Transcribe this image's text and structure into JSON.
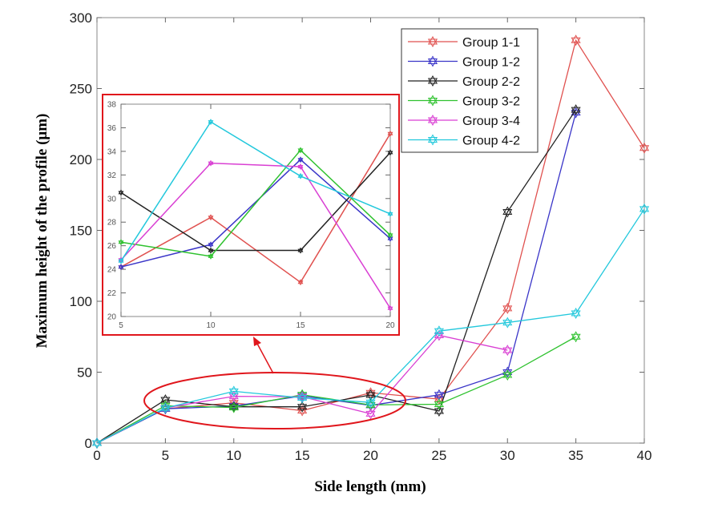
{
  "chart_data": {
    "type": "line",
    "xlabel": "Side length (mm)",
    "ylabel": "Maximum height of the profile (μm)",
    "xlim": [
      0,
      40
    ],
    "ylim": [
      0,
      300
    ],
    "xticks": [
      0,
      5,
      10,
      15,
      20,
      25,
      30,
      35,
      40
    ],
    "yticks": [
      0,
      50,
      100,
      150,
      200,
      250,
      300
    ],
    "legend_position": "top-right",
    "grid": false,
    "marker": "hexagram",
    "series": [
      {
        "name": "Group 1-1",
        "color": "#e0514f",
        "x": [
          0,
          5,
          10,
          15,
          20,
          25,
          30,
          35,
          40
        ],
        "y": [
          0,
          24.2,
          28.4,
          22.9,
          35.5,
          31,
          95,
          284,
          208
        ]
      },
      {
        "name": "Group 1-2",
        "color": "#3a35c8",
        "x": [
          0,
          5,
          10,
          15,
          20,
          25,
          30,
          35
        ],
        "y": [
          0,
          24.2,
          26.1,
          33.3,
          26.6,
          34,
          50,
          233
        ]
      },
      {
        "name": "Group 2-2",
        "color": "#222222",
        "x": [
          0,
          5,
          10,
          15,
          20,
          25,
          30,
          35
        ],
        "y": [
          0,
          30.5,
          25.6,
          25.6,
          33.9,
          22.6,
          163,
          235
        ]
      },
      {
        "name": "Group 3-2",
        "color": "#2fc22f",
        "x": [
          0,
          5,
          10,
          15,
          20,
          25,
          30,
          35
        ],
        "y": [
          0,
          26.3,
          25.1,
          34.1,
          26.9,
          27.4,
          48,
          75
        ]
      },
      {
        "name": "Group 3-4",
        "color": "#d93fd3",
        "x": [
          0,
          5,
          10,
          15,
          20,
          25,
          30
        ],
        "y": [
          0,
          24.8,
          33,
          32.7,
          20.7,
          76,
          65.5
        ]
      },
      {
        "name": "Group 4-2",
        "color": "#22c8dc",
        "x": [
          0,
          5,
          10,
          15,
          20,
          25,
          30,
          35,
          40
        ],
        "y": [
          0,
          24.7,
          36.5,
          31.9,
          28.7,
          79,
          85,
          91.5,
          165
        ]
      }
    ],
    "inset": {
      "xlim": [
        5,
        20
      ],
      "ylim": [
        20,
        38
      ],
      "xticks": [
        5,
        10,
        15,
        20
      ],
      "yticks": [
        20,
        22,
        24,
        26,
        28,
        30,
        32,
        34,
        36,
        38
      ]
    },
    "annotation_color": "#e0161c"
  }
}
